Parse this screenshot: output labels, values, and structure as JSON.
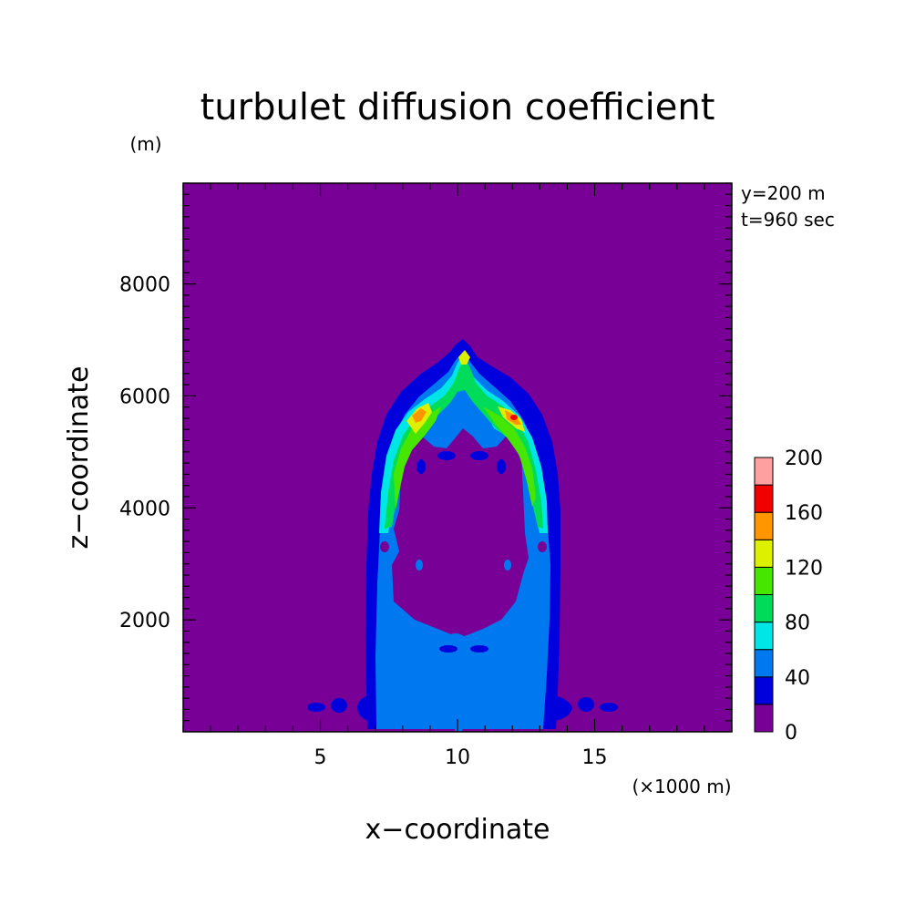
{
  "chart_data": {
    "type": "heatmap",
    "title": "turbulet diffusion coefficient",
    "xlabel": "x−coordinate",
    "ylabel": "z−coordinate",
    "x_unit": "(×1000 m)",
    "y_unit": "(m)",
    "annotations": [
      "y=200 m",
      "t=960 sec"
    ],
    "xlim": [
      0,
      20
    ],
    "ylim": [
      0,
      9800
    ],
    "x_ticks": [
      5,
      10,
      15
    ],
    "x_tick_labels": [
      "5",
      "10",
      "15"
    ],
    "y_ticks": [
      2000,
      4000,
      6000,
      8000
    ],
    "y_tick_labels": [
      "2000",
      "4000",
      "6000",
      "8000"
    ],
    "grid": false,
    "colorbar": {
      "levels": [
        0,
        20,
        40,
        60,
        80,
        100,
        120,
        140,
        160,
        180,
        200
      ],
      "labeled_levels": [
        0,
        40,
        80,
        120,
        160,
        200
      ],
      "labels": [
        "0",
        "40",
        "80",
        "120",
        "160",
        "200"
      ],
      "colors": [
        "#780096",
        "#0000dc",
        "#0078f0",
        "#00e6e6",
        "#00dc5a",
        "#46e600",
        "#dcf000",
        "#ff9600",
        "#f00000",
        "#ffa0a0"
      ]
    },
    "background_value_color": "#780096"
  }
}
